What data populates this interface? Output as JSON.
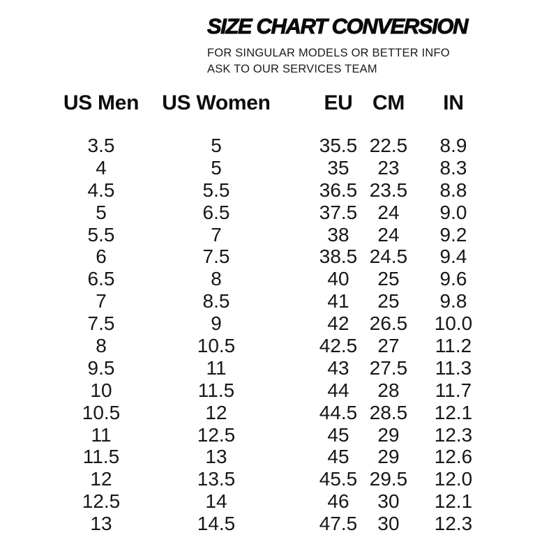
{
  "page": {
    "background_color": "#ffffff",
    "text_color": "#131313"
  },
  "chart_data": {
    "type": "table",
    "title": "SIZE CHART CONVERSION",
    "subtitle_line1": "FOR SINGULAR MODELS OR BETTER INFO",
    "subtitle_line2": "ASK TO OUR SERVICES TEAM",
    "columns": [
      "US Men",
      "US Women",
      "EU",
      "CM",
      "IN"
    ],
    "rows": [
      [
        "3.5",
        "5",
        "35.5",
        "22.5",
        "8.9"
      ],
      [
        "4",
        "5",
        "35",
        "23",
        "8.3"
      ],
      [
        "4.5",
        "5.5",
        "36.5",
        "23.5",
        "8.8"
      ],
      [
        "5",
        "6.5",
        "37.5",
        "24",
        "9.0"
      ],
      [
        "5.5",
        "7",
        "38",
        "24",
        "9.2"
      ],
      [
        "6",
        "7.5",
        "38.5",
        "24.5",
        "9.4"
      ],
      [
        "6.5",
        "8",
        "40",
        "25",
        "9.6"
      ],
      [
        "7",
        "8.5",
        "41",
        "25",
        "9.8"
      ],
      [
        "7.5",
        "9",
        "42",
        "26.5",
        "10.0"
      ],
      [
        "8",
        "10.5",
        "42.5",
        "27",
        "11.2"
      ],
      [
        "9.5",
        "11",
        "43",
        "27.5",
        "11.3"
      ],
      [
        "10",
        "11.5",
        "44",
        "28",
        "11.7"
      ],
      [
        "10.5",
        "12",
        "44.5",
        "28.5",
        "12.1"
      ],
      [
        "11",
        "12.5",
        "45",
        "29",
        "12.3"
      ],
      [
        "11.5",
        "13",
        "45",
        "29",
        "12.6"
      ],
      [
        "12",
        "13.5",
        "45.5",
        "29.5",
        "12.0"
      ],
      [
        "12.5",
        "14",
        "46",
        "30",
        "12.1"
      ],
      [
        "13",
        "14.5",
        "47.5",
        "30",
        "12.3"
      ]
    ],
    "layout_hints": {
      "grid": "off",
      "alignment": "all columns center-aligned",
      "header_style": "bold"
    }
  }
}
